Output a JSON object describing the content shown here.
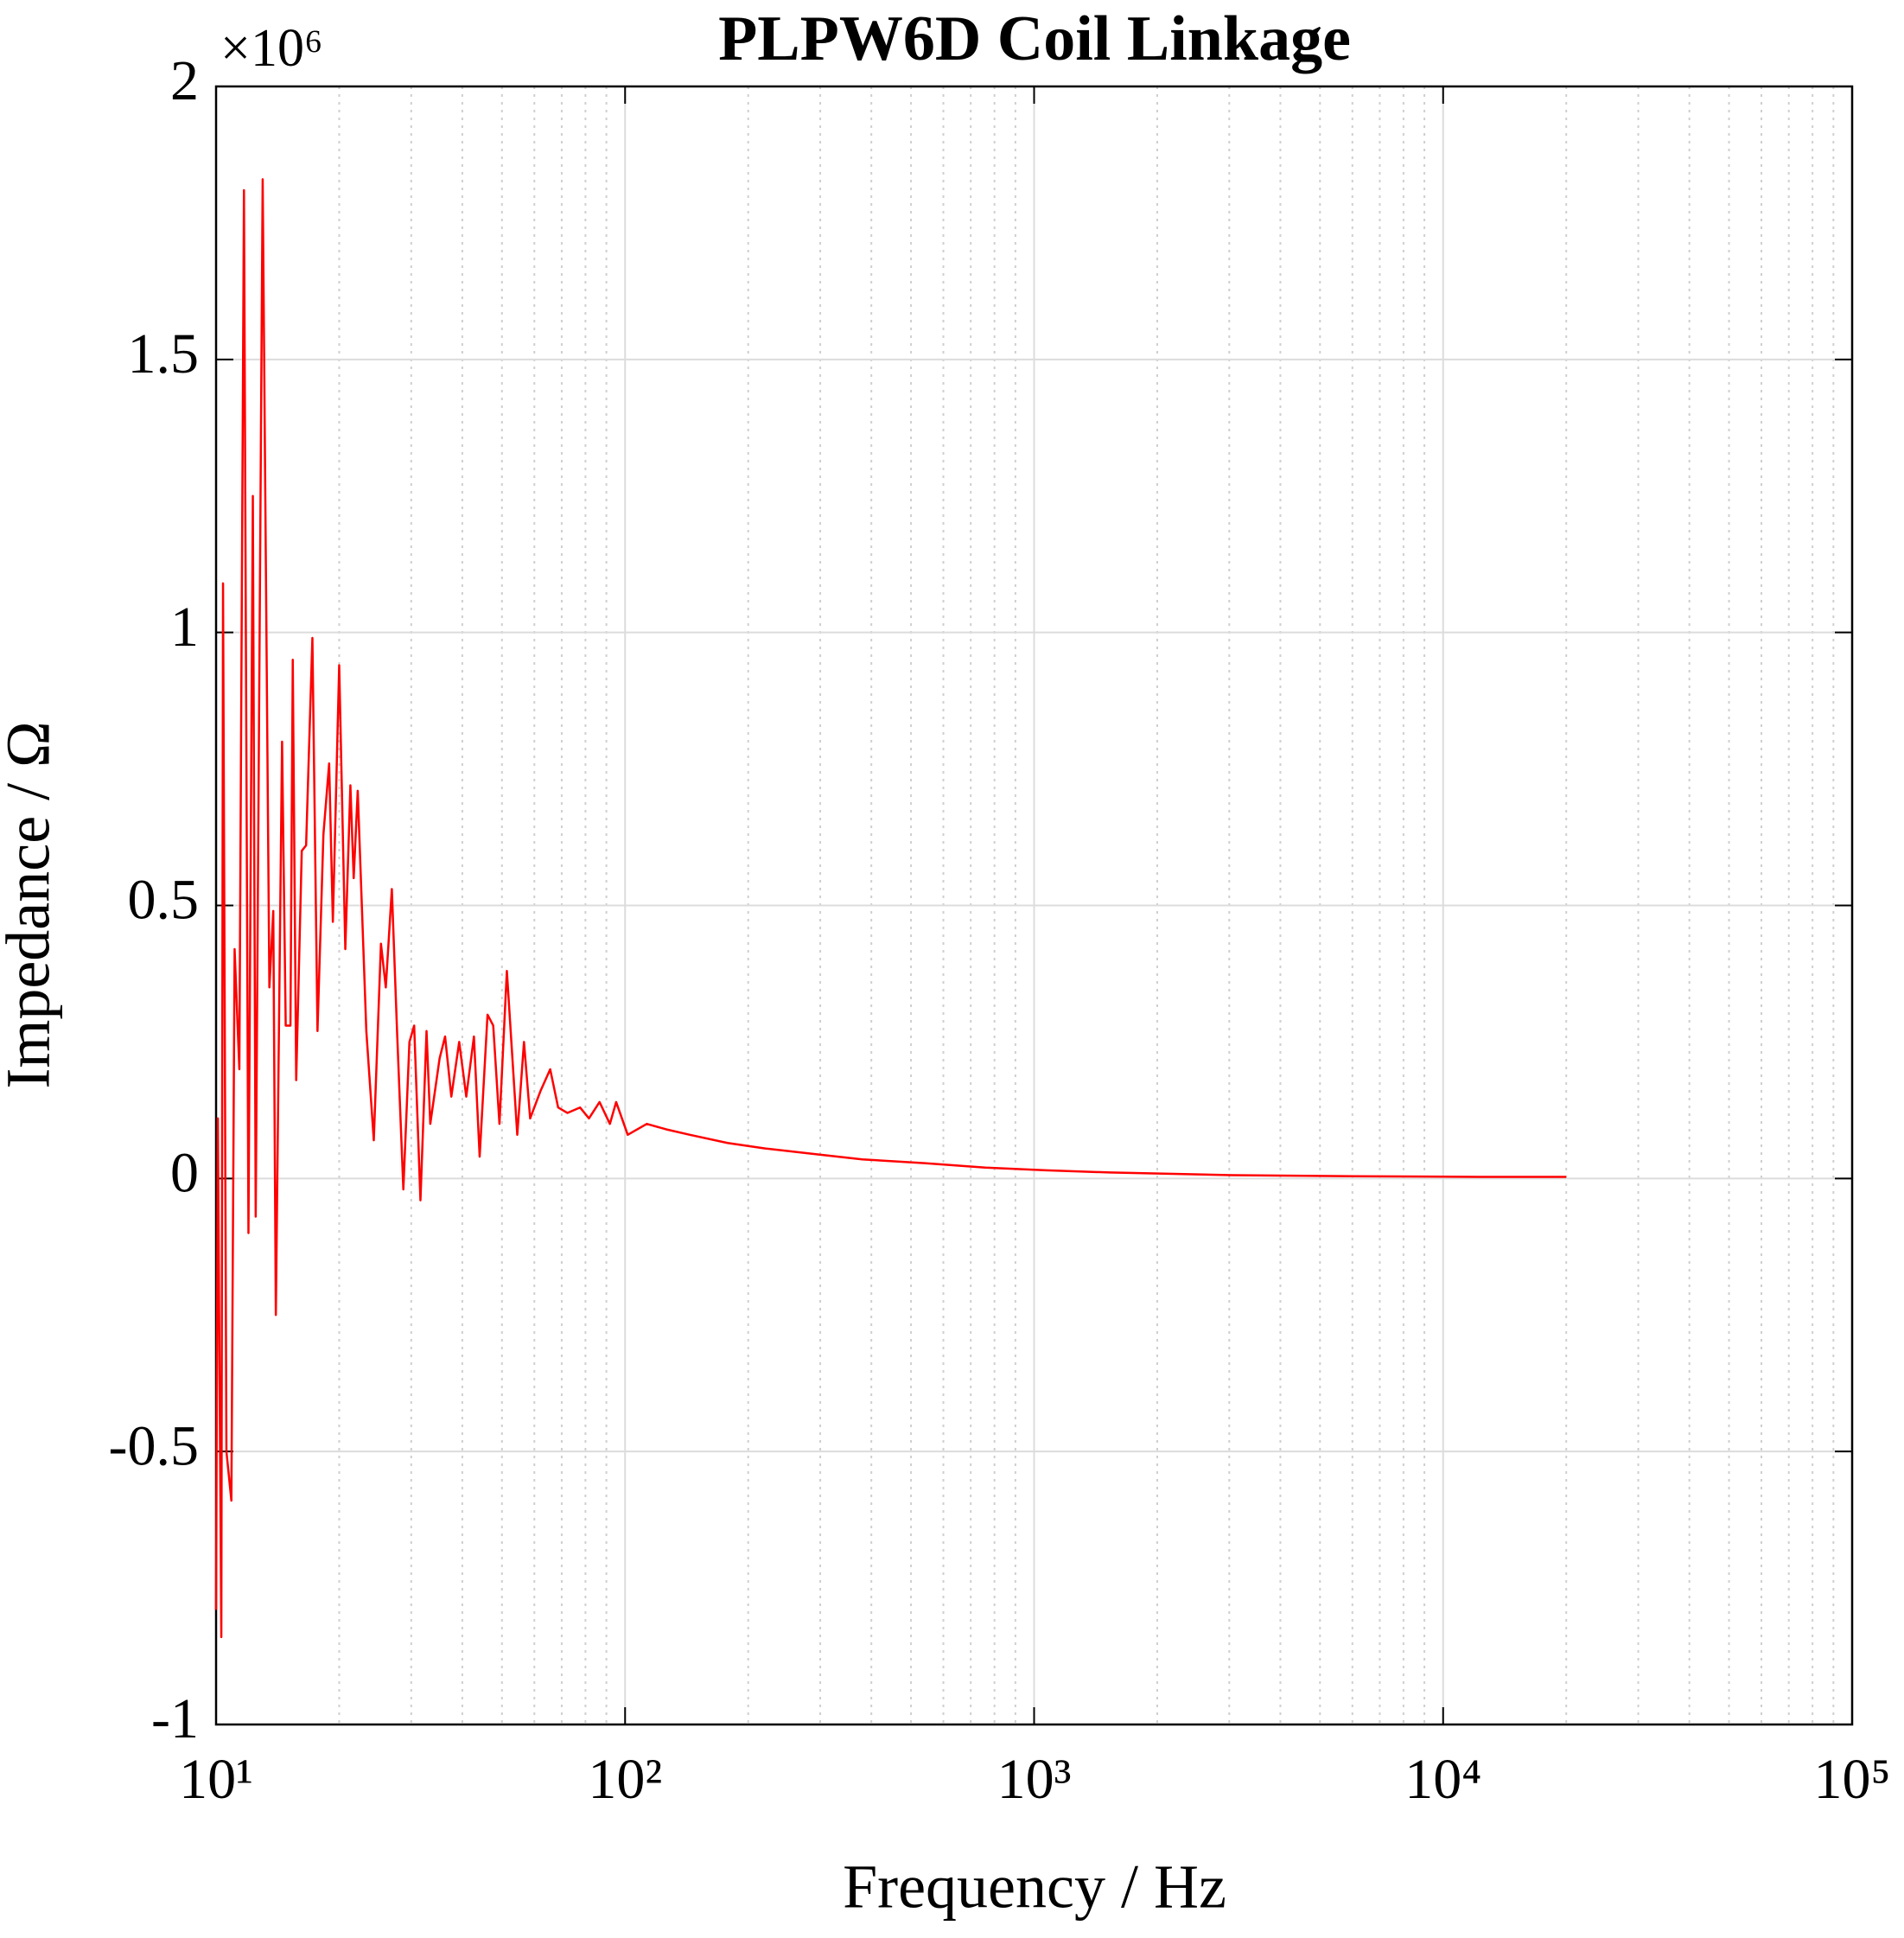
{
  "chart_data": {
    "type": "line",
    "title": "PLPW6D Coil Linkage",
    "x_label": "Frequency / Hz",
    "y_label": "Impedance / Ω",
    "y_multiplier": "×10⁶",
    "x_scale": "log",
    "grid": true,
    "minor_grid": true,
    "xlim": [
      10,
      100000
    ],
    "xticks": [
      {
        "value": 10,
        "label": "10¹"
      },
      {
        "value": 100,
        "label": "10²"
      },
      {
        "value": 1000,
        "label": "10³"
      },
      {
        "value": 10000,
        "label": "10⁴"
      },
      {
        "value": 100000,
        "label": "10⁵"
      }
    ],
    "ylim": [
      -1,
      2
    ],
    "yticks": [
      -1,
      -0.5,
      0,
      0.5,
      1,
      1.5,
      2
    ],
    "series": [
      {
        "color": "#ff0000",
        "x": [
          10.0,
          10.1,
          10.3,
          10.4,
          10.6,
          10.9,
          11.1,
          11.4,
          11.7,
          12.0,
          12.3,
          12.5,
          13.0,
          13.5,
          13.8,
          14.0,
          14.5,
          14.8,
          15.2,
          15.4,
          15.7,
          16.2,
          16.6,
          17.2,
          17.7,
          18.3,
          18.9,
          19.3,
          20.0,
          20.7,
          21.3,
          21.7,
          22.2,
          23.3,
          24.3,
          25.3,
          26.0,
          26.9,
          27.7,
          28.7,
          29.7,
          30.5,
          31.6,
          32.7,
          33.4,
          35.2,
          36.3,
          37.6,
          39.3,
          40.9,
          42.7,
          44.1,
          46.1,
          47.6,
          49.3,
          51.4,
          54.5,
          56.6,
          58.6,
          62.1,
          65.6,
          68.6,
          72.3,
          77.6,
          81.6,
          86.6,
          91.8,
          95.1,
          101.5,
          113,
          126,
          144,
          178,
          220,
          288,
          380,
          540,
          760,
          1070,
          1530,
          3040,
          6080,
          12300,
          20000
        ],
        "values": [
          -0.79,
          0.11,
          -0.84,
          1.09,
          -0.5,
          -0.59,
          0.42,
          0.2,
          1.81,
          -0.1,
          1.25,
          -0.07,
          1.83,
          0.35,
          0.49,
          -0.25,
          0.8,
          0.28,
          0.28,
          0.95,
          0.18,
          0.6,
          0.61,
          0.99,
          0.27,
          0.63,
          0.76,
          0.47,
          0.94,
          0.42,
          0.72,
          0.55,
          0.71,
          0.27,
          0.07,
          0.43,
          0.35,
          0.53,
          0.27,
          -0.02,
          0.25,
          0.28,
          -0.04,
          0.27,
          0.1,
          0.22,
          0.26,
          0.15,
          0.25,
          0.15,
          0.26,
          0.04,
          0.3,
          0.28,
          0.1,
          0.38,
          0.08,
          0.25,
          0.11,
          0.16,
          0.2,
          0.13,
          0.12,
          0.13,
          0.11,
          0.14,
          0.1,
          0.14,
          0.08,
          0.1,
          0.09,
          0.08,
          0.065,
          0.055,
          0.045,
          0.035,
          0.028,
          0.02,
          0.015,
          0.011,
          0.006,
          0.004,
          0.003,
          0.003
        ]
      }
    ]
  }
}
